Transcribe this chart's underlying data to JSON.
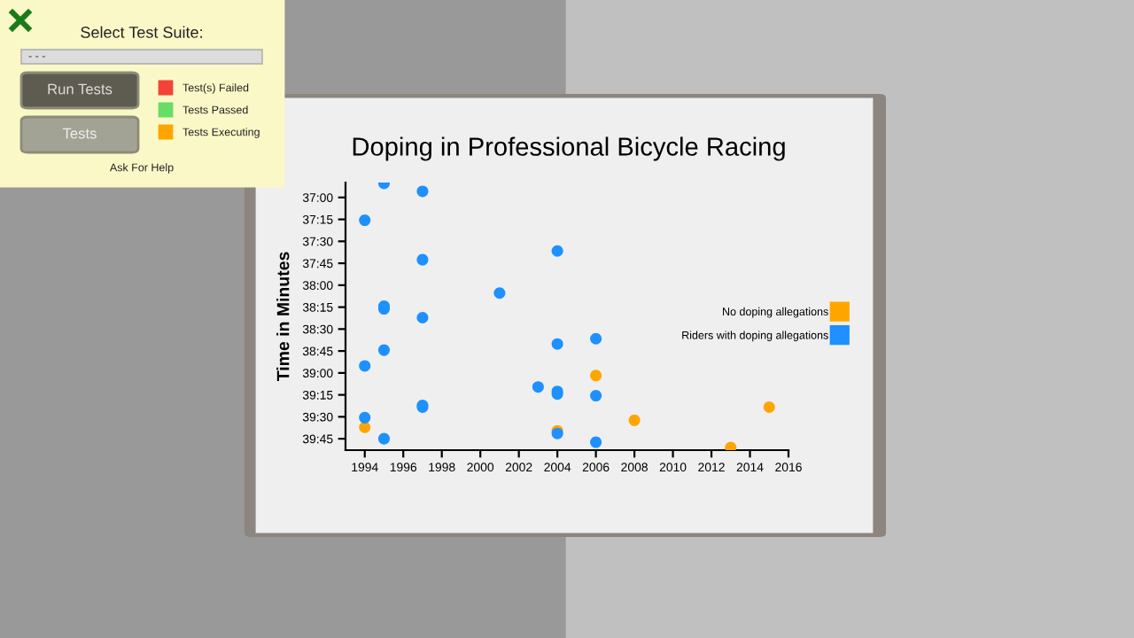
{
  "chart_data": {
    "type": "scatter",
    "title": "Doping in Professional Bicycle Racing",
    "ylabel": "Time in Minutes",
    "series": [
      {
        "name": "No doping allegations",
        "color": "#ffa500",
        "x": [
          1994,
          2006,
          2015,
          2008,
          2004,
          2013
        ],
        "values": [
          39.62,
          39.03,
          39.39,
          39.54,
          39.66,
          39.85
        ]
      },
      {
        "name": "Riders with doping allegations",
        "color": "#1e90ff",
        "x": [
          1995,
          1997,
          1994,
          1997,
          2001,
          1995,
          1995,
          1997,
          1995,
          1994,
          2003,
          1997,
          1997,
          1994,
          1995,
          2004,
          2004,
          2006,
          2004,
          2004,
          2006,
          2004,
          2006
        ],
        "values": [
          36.84,
          36.93,
          37.26,
          37.71,
          38.09,
          38.24,
          38.27,
          38.37,
          38.74,
          38.92,
          39.16,
          39.37,
          39.39,
          39.51,
          39.75,
          37.61,
          38.67,
          38.61,
          39.21,
          39.24,
          39.26,
          39.69,
          39.79
        ]
      }
    ],
    "xlim": [
      1993,
      2016
    ],
    "xticks": [
      1994,
      1996,
      1998,
      2000,
      2002,
      2004,
      2006,
      2008,
      2010,
      2012,
      2014,
      2016
    ],
    "ylim": [
      39.88,
      36.83
    ],
    "yticks": [
      {
        "value": 37,
        "label": "37:00"
      },
      {
        "value": 37.25,
        "label": "37:15"
      },
      {
        "value": 37.5,
        "label": "37:30"
      },
      {
        "value": 37.75,
        "label": "37:45"
      },
      {
        "value": 38,
        "label": "38:00"
      },
      {
        "value": 38.25,
        "label": "38:15"
      },
      {
        "value": 38.5,
        "label": "38:30"
      },
      {
        "value": 38.75,
        "label": "38:45"
      },
      {
        "value": 39,
        "label": "39:00"
      },
      {
        "value": 39.25,
        "label": "39:15"
      },
      {
        "value": 39.5,
        "label": "39:30"
      },
      {
        "value": 39.75,
        "label": "39:45"
      }
    ],
    "marker": "circle",
    "grid": false,
    "legend": "right",
    "annotations": [
      "Select Test Suite:",
      "- - -",
      "Run Tests",
      "Tests",
      "Test(s) Failed",
      "Tests Passed",
      "Tests Executing",
      "Ask For Help"
    ]
  }
}
